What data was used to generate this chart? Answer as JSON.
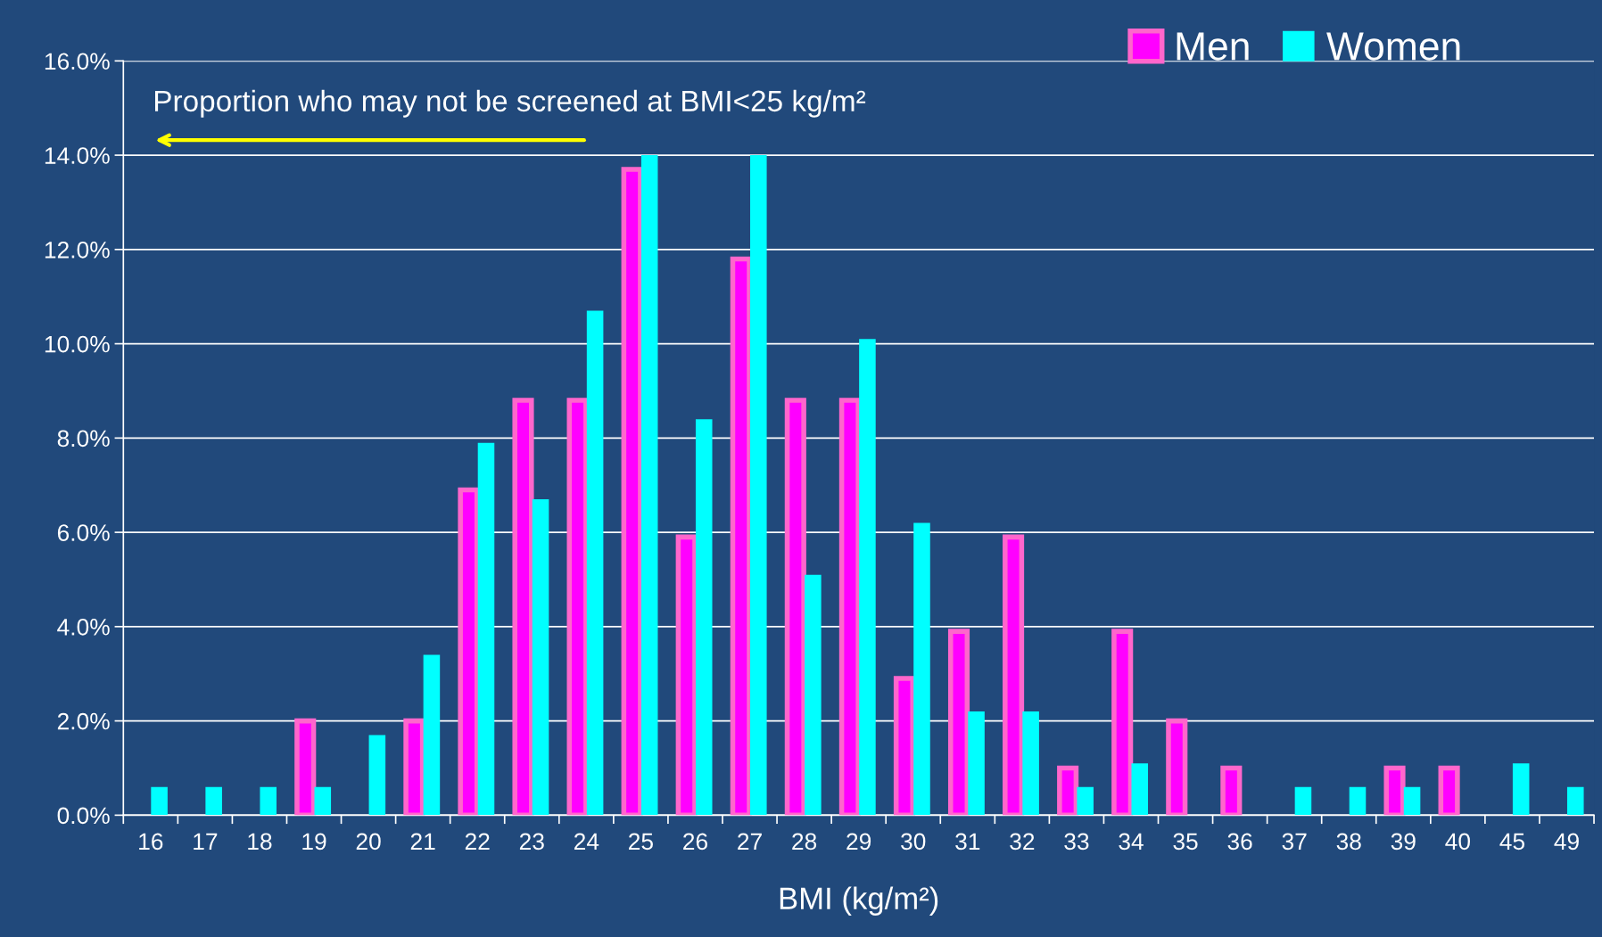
{
  "chart_data": {
    "type": "bar",
    "xlabel": "BMI (kg/m²)",
    "categories": [
      "16",
      "17",
      "18",
      "19",
      "20",
      "21",
      "22",
      "23",
      "24",
      "25",
      "26",
      "27",
      "28",
      "29",
      "30",
      "31",
      "32",
      "33",
      "34",
      "35",
      "36",
      "37",
      "38",
      "39",
      "40",
      "45",
      "49"
    ],
    "series": [
      {
        "name": "Men",
        "color": "#ff00ff",
        "values": [
          0,
          0,
          0,
          2.0,
          0,
          2.0,
          6.9,
          8.8,
          8.8,
          13.7,
          5.9,
          11.8,
          8.8,
          8.8,
          2.9,
          3.9,
          5.9,
          1.0,
          3.9,
          2.0,
          1.0,
          0,
          0,
          1.0,
          1.0,
          0,
          0
        ]
      },
      {
        "name": "Women",
        "color": "#00ffff",
        "values": [
          0.6,
          0.6,
          0.6,
          0.6,
          1.7,
          3.4,
          7.9,
          6.7,
          10.7,
          14.0,
          8.4,
          14.0,
          5.1,
          10.1,
          6.2,
          2.2,
          2.2,
          0.6,
          1.1,
          0,
          0,
          0.6,
          0.6,
          0.6,
          0,
          1.1,
          0.6
        ]
      }
    ],
    "ylim": [
      0,
      16
    ],
    "yticks": [
      {
        "value": 0,
        "label": "0.0%"
      },
      {
        "value": 2,
        "label": "2.0%"
      },
      {
        "value": 4,
        "label": "4.0%"
      },
      {
        "value": 6,
        "label": "6.0%"
      },
      {
        "value": 8,
        "label": "8.0%"
      },
      {
        "value": 10,
        "label": "10.0%"
      },
      {
        "value": 12,
        "label": "12.0%"
      },
      {
        "value": 14,
        "label": "14.0%"
      },
      {
        "value": 16,
        "label": "16.0%"
      }
    ],
    "grid": "y",
    "legend": "top right",
    "annotations": [
      "Proportion who may not be screened at BMI<25 kg/m²"
    ]
  }
}
